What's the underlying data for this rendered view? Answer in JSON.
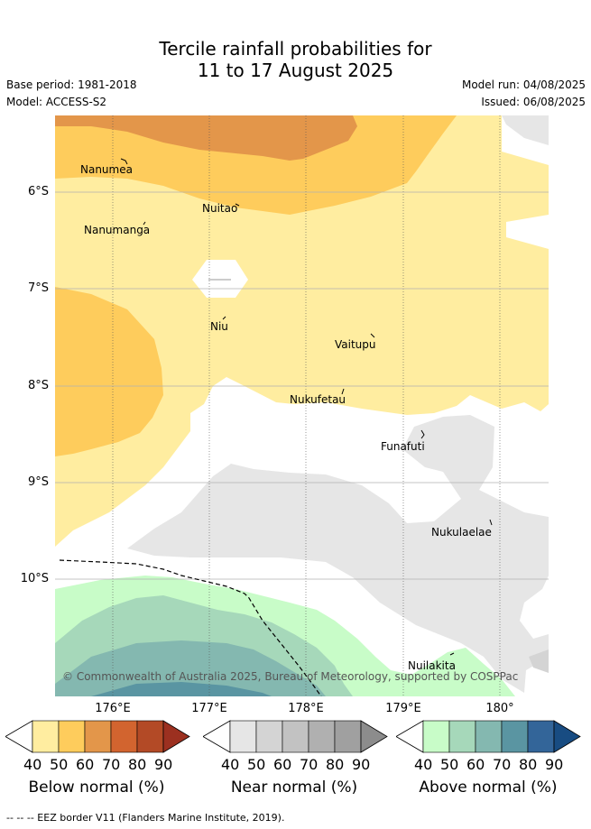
{
  "title_line1": "Tercile rainfall probabilities for",
  "title_line2": "11 to 17 August 2025",
  "base_period": "Base period: 1981-2018",
  "model": "Model: ACCESS-S2",
  "model_run": "Model run: 04/08/2025",
  "issued": "Issued: 06/08/2025",
  "latitude_labels": [
    "6°S",
    "7°S",
    "8°S",
    "9°S",
    "10°S"
  ],
  "longitude_labels": [
    "176°E",
    "177°E",
    "178°E",
    "179°E",
    "180°"
  ],
  "places": [
    "Nanumea",
    "Nuitao",
    "Nanumanga",
    "Niu",
    "Vaitupu",
    "Nukufetau",
    "Funafuti",
    "Nukulaelae",
    "Nuilakita"
  ],
  "copyright": "© Commonwealth of Australia 2025, Bureau of Meteorology, supported by COSPPac",
  "colorbars": {
    "below": {
      "title": "Below normal (%)",
      "ticks": [
        "40",
        "50",
        "60",
        "70",
        "80",
        "90"
      ],
      "colors": [
        "#ffeda0",
        "#fecc5c",
        "#e3964a",
        "#d2642f",
        "#b34a26",
        "#9c3020"
      ]
    },
    "near": {
      "title": "Near normal (%)",
      "ticks": [
        "40",
        "50",
        "60",
        "70",
        "80",
        "90"
      ],
      "colors": [
        "#e6e6e6",
        "#d4d4d4",
        "#c2c2c2",
        "#b0b0b0",
        "#a0a0a0",
        "#8c8c8c"
      ]
    },
    "above": {
      "title": "Above normal (%)",
      "ticks": [
        "40",
        "50",
        "60",
        "70",
        "80",
        "90"
      ],
      "colors": [
        "#c8fcc8",
        "#a6d8ba",
        "#84b8b0",
        "#5a95a2",
        "#336599",
        "#184c82"
      ]
    }
  },
  "eez_note": "--  --  -- EEZ border V11 (Flanders Marine Institute, 2019)."
}
